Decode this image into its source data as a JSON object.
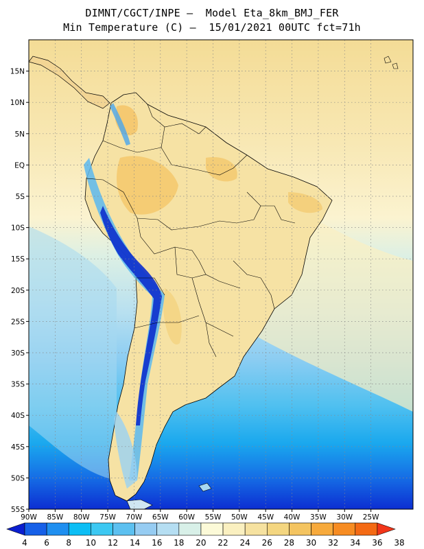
{
  "header": {
    "line1": "DIMNT/CGCT/INPE –  Model Eta_8km_BMJ_FER",
    "line2": "Min Temperature (C) –  15/01/2021 00UTC fct=71h"
  },
  "map": {
    "lon_range": [
      -90,
      -17
    ],
    "lat_range": [
      -55,
      20
    ],
    "lon_ticks": [
      "90W",
      "85W",
      "80W",
      "75W",
      "70W",
      "65W",
      "60W",
      "55W",
      "50W",
      "45W",
      "40W",
      "35W",
      "30W",
      "25W"
    ],
    "lat_ticks": [
      "15N",
      "10N",
      "5N",
      "EQ",
      "5S",
      "10S",
      "15S",
      "20S",
      "25S",
      "30S",
      "35S",
      "40S",
      "45S",
      "50S",
      "55S"
    ],
    "gridlines": "dotted"
  },
  "colorbar": {
    "levels": [
      "4",
      "6",
      "8",
      "10",
      "12",
      "14",
      "16",
      "18",
      "20",
      "22",
      "24",
      "26",
      "28",
      "30",
      "32",
      "34",
      "36",
      "38"
    ],
    "colors": [
      "#0b1fd0",
      "#1660e8",
      "#1f8ff0",
      "#0cbef5",
      "#3cc8f2",
      "#5cc0f0",
      "#96ccf2",
      "#b5def2",
      "#d8f0e8",
      "#fcfad8",
      "#faf0c0",
      "#f6e2a0",
      "#f4d680",
      "#f4c460",
      "#f7aa3c",
      "#f78c22",
      "#f46a14",
      "#f2361a"
    ]
  }
}
